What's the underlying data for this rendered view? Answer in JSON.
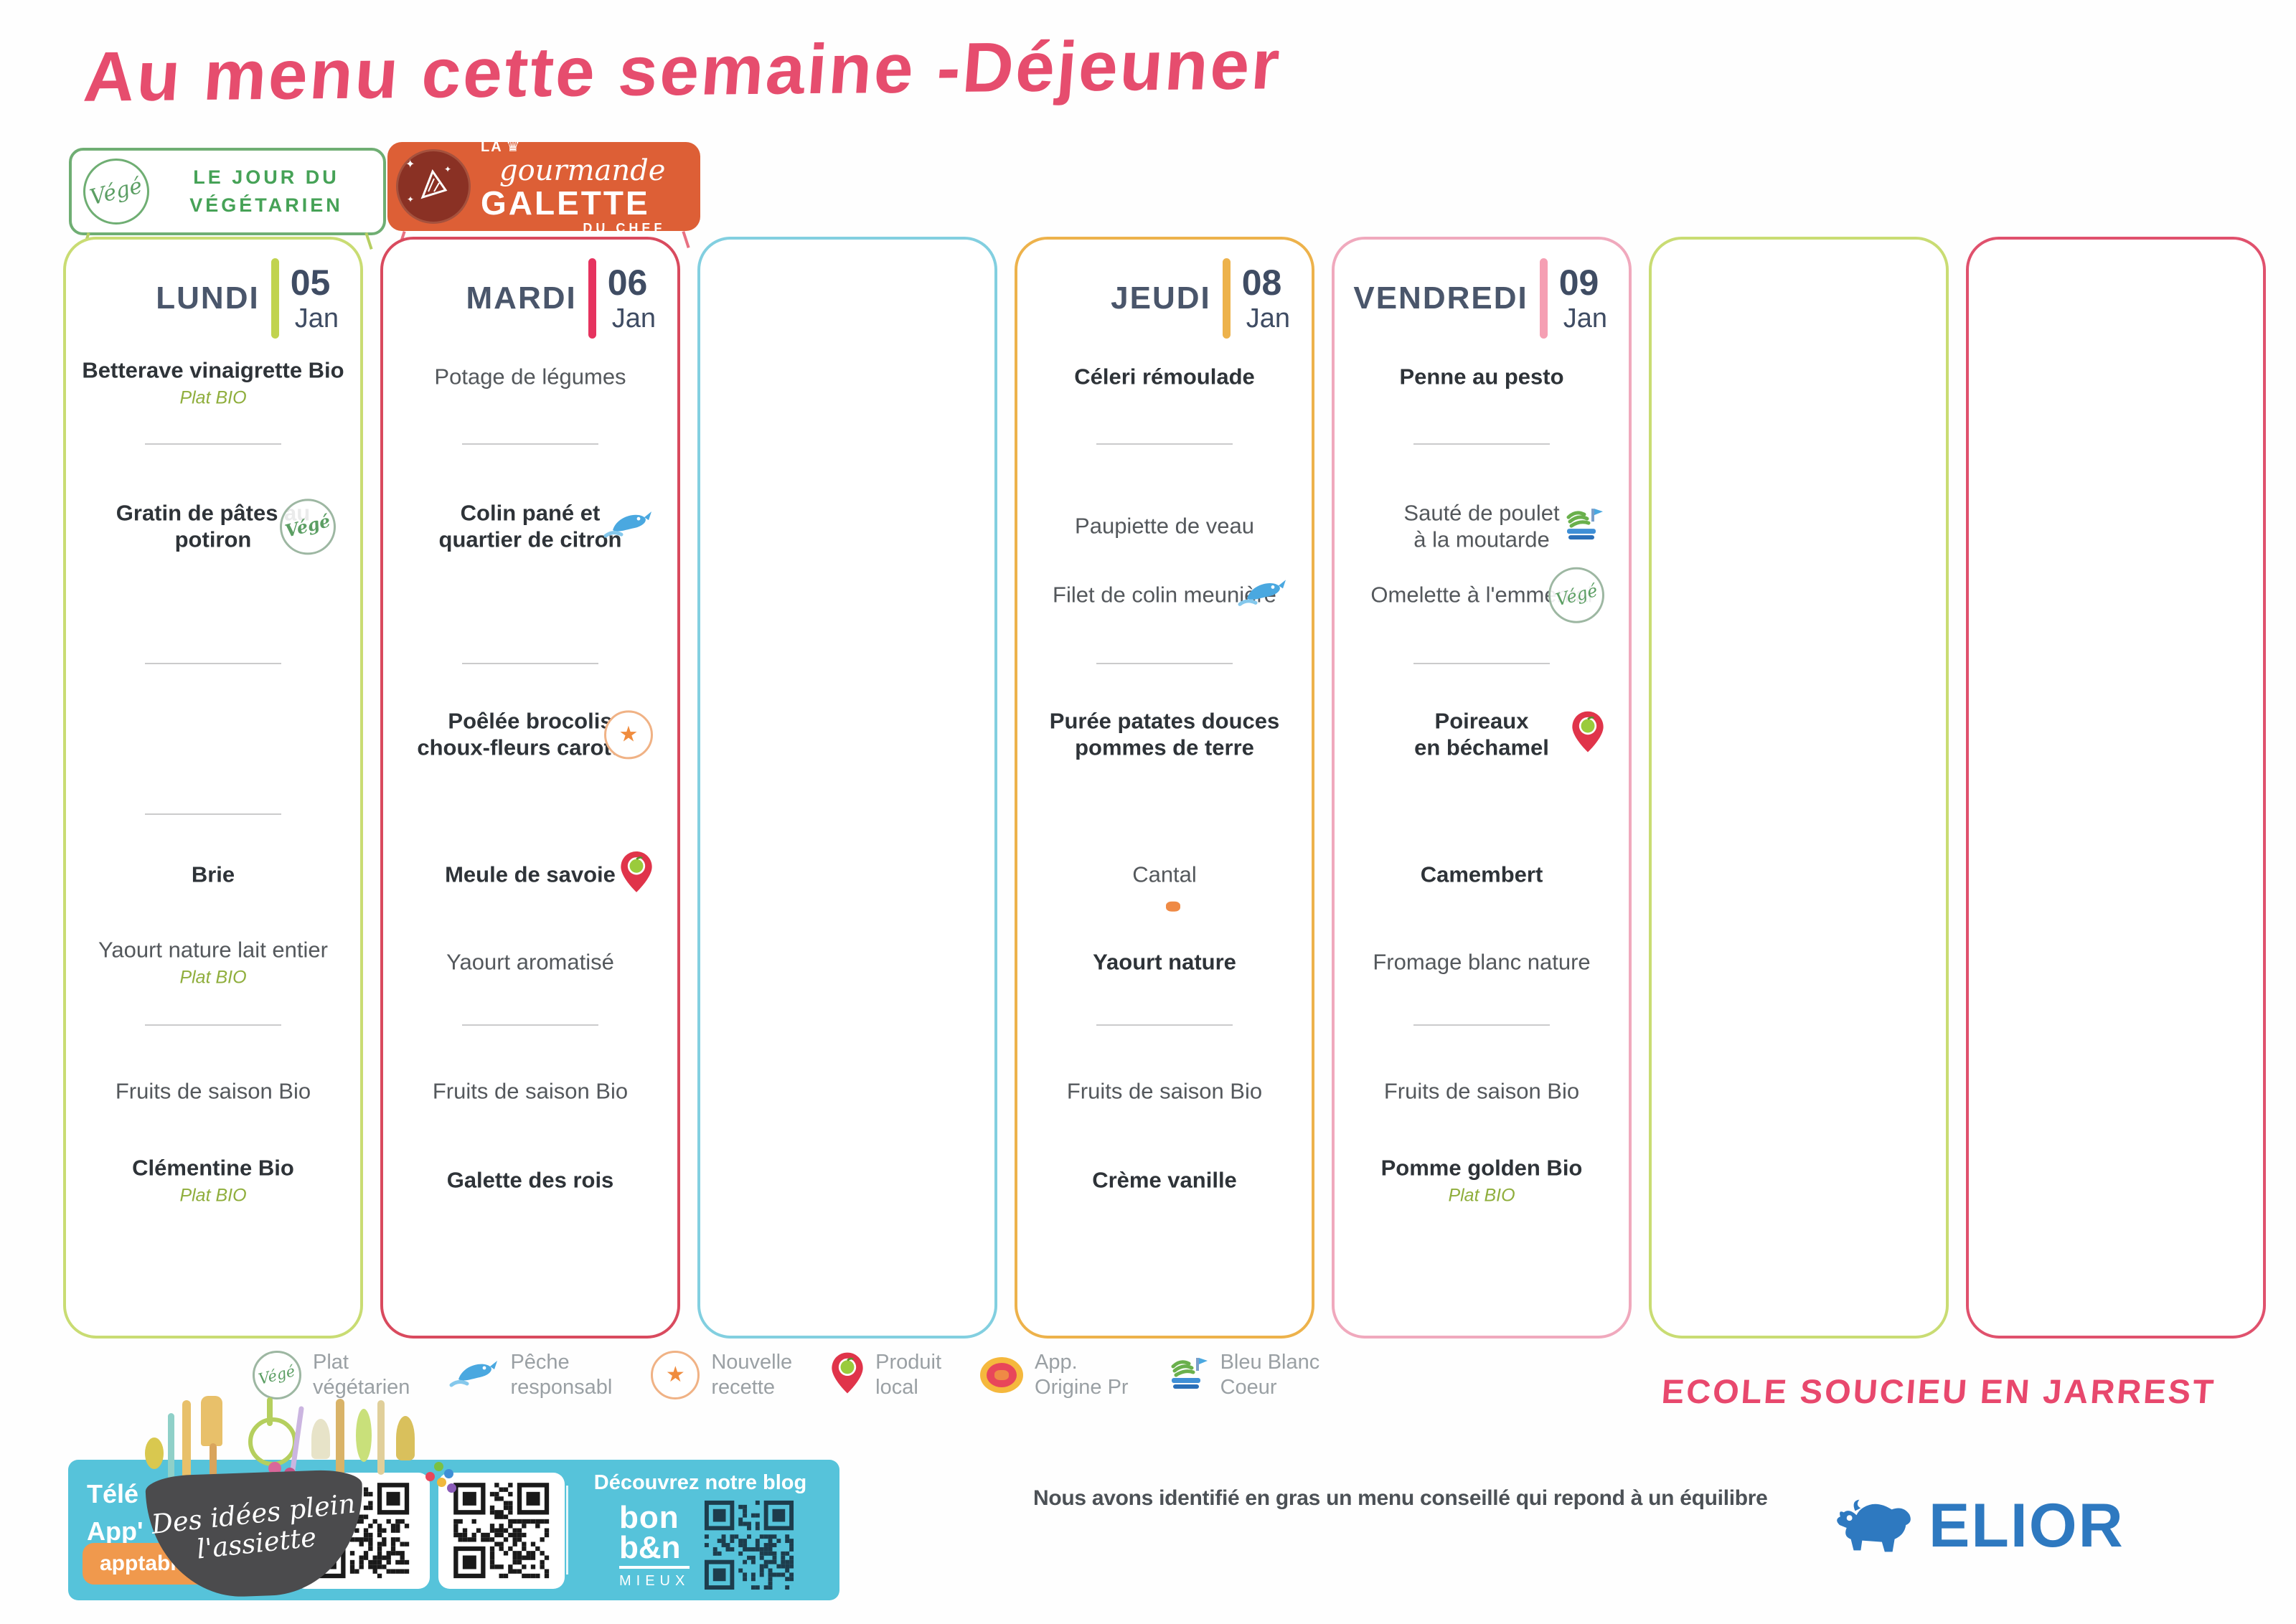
{
  "title": "Au menu cette semaine -Déjeuner",
  "badges": {
    "vege": {
      "stamp": "Végé",
      "label": "LE JOUR DU\nVÉGÉTARIEN"
    },
    "galette": {
      "la": "LA",
      "crown": "♛",
      "script": "gourmande",
      "main": "GALETTE",
      "sub": "DU CHEF"
    }
  },
  "icons": {
    "vege_stamp": "Végé",
    "star": "★",
    "sparkle": "✦"
  },
  "columns": [
    {
      "id": "lundi",
      "border": "#c9dc73",
      "header": {
        "day": "LUNDI",
        "num": "05",
        "mon": "Jan",
        "bar": "#c1d34f"
      },
      "items": [
        {
          "slot": "entree_sub",
          "text": "Betterave vinaigrette Bio",
          "sub": "Plat BIO",
          "bold": true
        },
        {
          "slot": "sep1",
          "type": "divider"
        },
        {
          "slot": "plat",
          "text": "Gratin de pâtes au\npotiron",
          "bold": true,
          "icon": "vege"
        },
        {
          "slot": "sep2",
          "type": "divider"
        },
        {
          "slot": "sep_extra",
          "type": "divider"
        },
        {
          "slot": "fromage",
          "text": "Brie",
          "bold": true
        },
        {
          "slot": "laitage",
          "text": "Yaourt nature lait entier",
          "sub": "Plat BIO"
        },
        {
          "slot": "sep3",
          "type": "divider"
        },
        {
          "slot": "fruit",
          "text": "Fruits de saison Bio"
        },
        {
          "slot": "dessert",
          "text": "Clémentine Bio",
          "sub": "Plat BIO",
          "bold": true
        }
      ]
    },
    {
      "id": "mardi",
      "border": "#d94a5e",
      "header": {
        "day": "MARDI",
        "num": "06",
        "mon": "Jan",
        "bar": "#e6335f"
      },
      "items": [
        {
          "slot": "entree",
          "text": "Potage de légumes"
        },
        {
          "slot": "sep1",
          "type": "divider"
        },
        {
          "slot": "plat",
          "text": "Colin pané et\nquartier de citron",
          "bold": true,
          "icon": "fish"
        },
        {
          "slot": "sep2",
          "type": "divider"
        },
        {
          "slot": "legume",
          "text": "Poêlée brocolis\nchoux-fleurs carottes",
          "bold": true,
          "icon": "star"
        },
        {
          "slot": "fromage",
          "text": "Meule de savoie",
          "bold": true,
          "icon": "pin"
        },
        {
          "slot": "laitage",
          "text": "Yaourt aromatisé"
        },
        {
          "slot": "sep3",
          "type": "divider"
        },
        {
          "slot": "fruit",
          "text": "Fruits de saison Bio"
        },
        {
          "slot": "dessert",
          "text": "Galette des rois",
          "bold": true
        }
      ]
    },
    {
      "id": "mercredi-vide",
      "border": "#82cfe0",
      "header": null,
      "items": []
    },
    {
      "id": "jeudi",
      "border": "#edb24b",
      "header": {
        "day": "JEUDI",
        "num": "08",
        "mon": "Jan",
        "bar": "#edb24b"
      },
      "items": [
        {
          "slot": "entree",
          "text": "Céleri rémoulade",
          "bold": true
        },
        {
          "slot": "sep1",
          "type": "divider"
        },
        {
          "slot": "plat",
          "text": "Paupiette de veau"
        },
        {
          "slot": "plat2",
          "text": "Filet de colin meunière",
          "icon": "fish"
        },
        {
          "slot": "sep2",
          "type": "divider"
        },
        {
          "slot": "legume",
          "text": "Purée patates douces\npommes de terre",
          "bold": true
        },
        {
          "slot": "fromage",
          "text": "Cantal",
          "icon": "aop"
        },
        {
          "slot": "laitage",
          "text": "Yaourt nature",
          "bold": true
        },
        {
          "slot": "sep3",
          "type": "divider"
        },
        {
          "slot": "fruit",
          "text": "Fruits de saison Bio"
        },
        {
          "slot": "dessert",
          "text": "Crème vanille",
          "bold": true
        }
      ]
    },
    {
      "id": "vendredi",
      "border": "#f0a9bd",
      "header": {
        "day": "VENDREDI",
        "num": "09",
        "mon": "Jan",
        "bar": "#f59fb3"
      },
      "items": [
        {
          "slot": "entree",
          "text": "Penne au pesto",
          "bold": true
        },
        {
          "slot": "sep1",
          "type": "divider"
        },
        {
          "slot": "plat",
          "text": "Sauté de poulet\nà la moutarde",
          "icon": "bbc"
        },
        {
          "slot": "plat2",
          "text": "Omelette à l'emmental",
          "icon": "vege"
        },
        {
          "slot": "sep2",
          "type": "divider"
        },
        {
          "slot": "legume",
          "text": "Poireaux\nen béchamel",
          "bold": true,
          "icon": "pin"
        },
        {
          "slot": "fromage",
          "text": "Camembert",
          "bold": true
        },
        {
          "slot": "laitage",
          "text": "Fromage blanc nature"
        },
        {
          "slot": "sep3",
          "type": "divider"
        },
        {
          "slot": "fruit",
          "text": "Fruits de saison Bio"
        },
        {
          "slot": "dessert",
          "text": "Pomme golden Bio",
          "sub": "Plat BIO",
          "bold": true
        }
      ]
    },
    {
      "id": "samedi-vide",
      "border": "#c9dc73",
      "header": null,
      "items": []
    },
    {
      "id": "dimanche-vide",
      "border": "#e0516d",
      "header": null,
      "items": []
    }
  ],
  "legend": [
    {
      "icon": "vege",
      "label": "Plat\nvégétarien"
    },
    {
      "icon": "fish",
      "label": "Pêche\nresponsabl"
    },
    {
      "icon": "star",
      "label": "Nouvelle\nrecette"
    },
    {
      "icon": "pin",
      "label": "Produit\nlocal"
    },
    {
      "icon": "aop",
      "label": "App.\nOrigine Pr"
    },
    {
      "icon": "bbc",
      "label": "Bleu Blanc\nCoeur"
    }
  ],
  "footer": {
    "banner": {
      "download_text": "Télé\nApp'",
      "button": "apptable",
      "bowl_text": "Des idées plein\nl'assiette",
      "blog_title": "Découvrez notre blog",
      "blog_logo_line1": "bon",
      "blog_logo_line2": "b&n",
      "blog_logo_line3": "MIEUX"
    },
    "note": "Nous avons identifié en gras un menu conseillé qui repond à un équilibre",
    "school": "ECOLE SOUCIEU EN JARREST",
    "brand": "ELIOR"
  },
  "colors": {
    "brand_pink": "#e64d6e",
    "banner_cyan": "#56c3da",
    "elior_blue": "#2e79c0",
    "bio_green": "#8fae3c"
  }
}
